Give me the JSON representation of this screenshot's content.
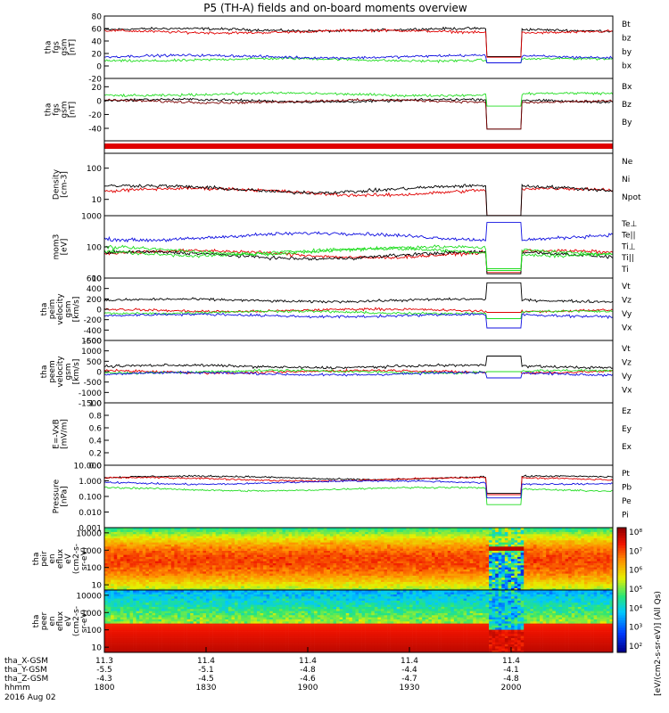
{
  "title": "P5 (TH-A) fields and on-board moments overview",
  "colors": {
    "black": "#000000",
    "red": "#e00000",
    "green": "#22dd22",
    "blue": "#1010e0",
    "darkred": "#7a0000"
  },
  "chart_data": [
    {
      "type": "line",
      "id": "p1",
      "ylabel": [
        "tha",
        "fgs",
        "gsm",
        "[nT]"
      ],
      "ylim": [
        -20,
        80
      ],
      "yticks": [
        "80",
        "60",
        "40",
        "20",
        "0",
        "-20"
      ],
      "series": [
        {
          "name": "Bt",
          "color": "black",
          "level": 58
        },
        {
          "name": "bz",
          "color": "red",
          "level": 55
        },
        {
          "name": "by",
          "color": "green",
          "level": 10
        },
        {
          "name": "bx",
          "color": "blue",
          "level": 15
        }
      ]
    },
    {
      "type": "line",
      "id": "p2",
      "ylabel": [
        "tha",
        "fgs",
        "gsm",
        "[nT]"
      ],
      "ylim": [
        -55,
        35
      ],
      "yticks": [
        "20",
        "0",
        "-20",
        "-40"
      ],
      "series": [
        {
          "name": "Bx",
          "color": "black",
          "level": 3
        },
        {
          "name": "Bz",
          "color": "darkred",
          "level": 2
        },
        {
          "name": "By",
          "color": "green",
          "level": 12
        }
      ]
    },
    {
      "type": "line",
      "id": "p4",
      "ylabel": [
        "Density",
        "[cm-3]"
      ],
      "ylim": [
        3,
        300
      ],
      "log": true,
      "yticks": [
        "100",
        "10"
      ],
      "series": [
        {
          "name": "Ne",
          "color": "red",
          "level": 18
        },
        {
          "name": "Ni",
          "color": "black",
          "level": 22
        },
        {
          "name": "Npot",
          "color": "blue",
          "level": null
        }
      ]
    },
    {
      "type": "line",
      "id": "p5",
      "ylabel": [
        "mom3",
        "[eV]"
      ],
      "ylim": [
        10,
        1000
      ],
      "log": true,
      "yticks": [
        "1000",
        "100",
        "10"
      ],
      "series": [
        {
          "name": "Te⊥",
          "color": "red",
          "level": 60
        },
        {
          "name": "Te||",
          "color": "black",
          "level": 55
        },
        {
          "name": "Ti⊥",
          "color": "green",
          "level": 80
        },
        {
          "name": "Ti||",
          "color": "green",
          "level": 70
        },
        {
          "name": "Ti",
          "color": "blue",
          "level": 220
        }
      ]
    },
    {
      "type": "line",
      "id": "p6",
      "ylabel": [
        "tha",
        "peim",
        "velocity",
        "gsm",
        "[km/s]"
      ],
      "ylim": [
        -600,
        600
      ],
      "yticks": [
        "600",
        "400",
        "200",
        "0",
        "-200",
        "-400",
        "-600"
      ],
      "series": [
        {
          "name": "Vt",
          "color": "black",
          "level": 170
        },
        {
          "name": "Vz",
          "color": "red",
          "level": -20
        },
        {
          "name": "Vy",
          "color": "green",
          "level": -60
        },
        {
          "name": "Vx",
          "color": "blue",
          "level": -120
        }
      ]
    },
    {
      "type": "line",
      "id": "p7",
      "ylabel": [
        "tha",
        "peem",
        "velocity",
        "gsm",
        "[km/s]"
      ],
      "ylim": [
        -1500,
        1500
      ],
      "yticks": [
        "1500",
        "1000",
        "500",
        "0",
        "-500",
        "-1000",
        "-1500"
      ],
      "series": [
        {
          "name": "Vt",
          "color": "black",
          "level": 250
        },
        {
          "name": "Vz",
          "color": "red",
          "level": 0
        },
        {
          "name": "Vy",
          "color": "green",
          "level": 0
        },
        {
          "name": "Vx",
          "color": "blue",
          "level": -100
        }
      ]
    },
    {
      "type": "line",
      "id": "p8",
      "ylabel": [
        "E=-VxB",
        "[mV/m]"
      ],
      "ylim": [
        0,
        1
      ],
      "yticks": [
        "1.0",
        "0.8",
        "0.6",
        "0.4",
        "0.2",
        "0.0"
      ],
      "series": [
        {
          "name": "Ez",
          "color": "red",
          "level": null
        },
        {
          "name": "Ey",
          "color": "green",
          "level": null
        },
        {
          "name": "Ex",
          "color": "blue",
          "level": null
        }
      ]
    },
    {
      "type": "line",
      "id": "p9",
      "ylabel": [
        "Pressure",
        "[nPa]"
      ],
      "ylim": [
        0.001,
        10
      ],
      "log": true,
      "yticks": [
        "10.000",
        "1.000",
        "0.100",
        "0.010",
        "0.001"
      ],
      "series": [
        {
          "name": "Pt",
          "color": "black",
          "level": 1.6
        },
        {
          "name": "Pb",
          "color": "red",
          "level": 1.3
        },
        {
          "name": "Pe",
          "color": "green",
          "level": 0.3
        },
        {
          "name": "Pi",
          "color": "blue",
          "level": 0.8
        }
      ]
    },
    {
      "type": "heatmap",
      "id": "p10",
      "ylabel": [
        "tha",
        "peir",
        "en",
        "eflux",
        "eV",
        "(cm2-s-",
        "sr-eV)"
      ],
      "ylim": [
        5,
        20000
      ],
      "log": true,
      "yticks": [
        "10000",
        "1000",
        "100",
        "10"
      ]
    },
    {
      "type": "heatmap",
      "id": "p11",
      "ylabel": [
        "tha",
        "peer",
        "en",
        "eflux",
        "eV",
        "(cm2-s-",
        "sr-eV)"
      ],
      "ylim": [
        5,
        20000
      ],
      "log": true,
      "yticks": [
        "10000",
        "1000",
        "100",
        "10"
      ]
    }
  ],
  "colorbar": {
    "label": "[eV/(cm2-s-sr-eV)] (All Qs)",
    "labels": [
      "10⁸",
      "10⁷",
      "10⁶",
      "10⁵",
      "10⁴",
      "10³",
      "10²"
    ]
  },
  "xaxis": {
    "rowlabels": [
      "tha_X-GSM",
      "tha_Y-GSM",
      "tha_Z-GSM",
      "hhmm",
      "2016 Aug 02"
    ],
    "ticks": [
      {
        "frac": 0.0,
        "X": "11.3",
        "Y": "-5.5",
        "Z": "-4.3",
        "hhmm": "1800"
      },
      {
        "frac": 0.2,
        "X": "11.4",
        "Y": "-5.1",
        "Z": "-4.5",
        "hhmm": "1830"
      },
      {
        "frac": 0.4,
        "X": "11.4",
        "Y": "-4.8",
        "Z": "-4.6",
        "hhmm": "1900"
      },
      {
        "frac": 0.6,
        "X": "11.4",
        "Y": "-4.4",
        "Z": "-4.7",
        "hhmm": "1930"
      },
      {
        "frac": 0.8,
        "X": "11.4",
        "Y": "-4.1",
        "Z": "-4.8",
        "hhmm": "2000"
      }
    ]
  }
}
